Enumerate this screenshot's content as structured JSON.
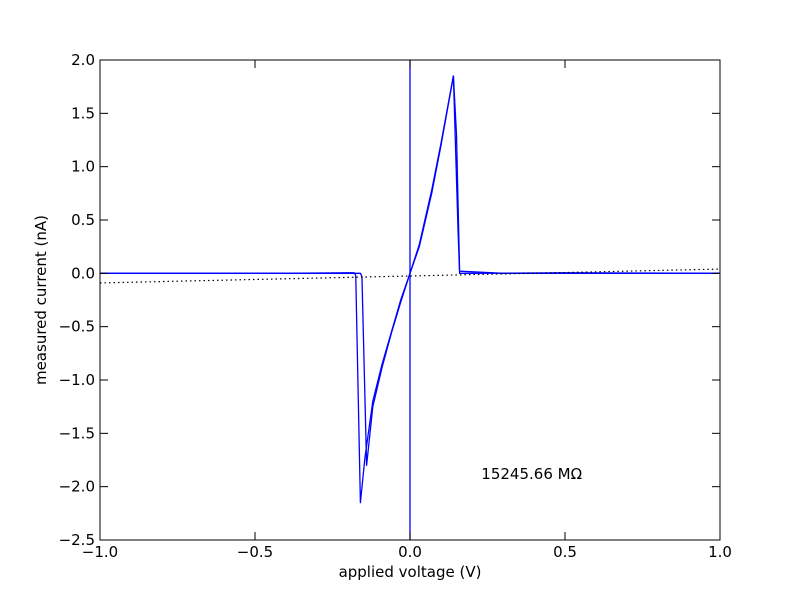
{
  "chart_data": {
    "type": "line",
    "xlabel": "applied voltage (V)",
    "ylabel": "measured current (nA)",
    "xlim": [
      -1.0,
      1.0
    ],
    "ylim": [
      -2.5,
      2.0
    ],
    "x_ticks": [
      -1.0,
      -0.5,
      0.0,
      0.5,
      1.0
    ],
    "x_tick_labels": [
      "−1.0",
      "−0.5",
      "0.0",
      "0.5",
      "1.0"
    ],
    "y_ticks": [
      2.0,
      1.5,
      1.0,
      0.5,
      0.0,
      -0.5,
      -1.0,
      -1.5,
      -2.0,
      -2.5
    ],
    "y_tick_labels": [
      "2.0",
      "1.5",
      "1.0",
      "0.5",
      "0.0",
      "−0.5",
      "−1.0",
      "−1.5",
      "−2.0",
      "−2.5"
    ],
    "grid": false,
    "annotation": {
      "text": "15245.66 MΩ",
      "x": 0.23,
      "y": -1.93
    },
    "series": [
      {
        "style": "solid",
        "color": "#0000ff",
        "x": [
          -1.0,
          -0.4,
          -0.2,
          -0.18,
          -0.175,
          -0.16,
          -0.145,
          -0.12,
          -0.09,
          -0.06,
          -0.03,
          0.0,
          0.03,
          0.07,
          0.1,
          0.14,
          0.155,
          0.16,
          0.2,
          0.5,
          1.0
        ],
        "y": [
          0.0,
          0.0,
          0.005,
          0.005,
          -0.02,
          -2.15,
          -1.72,
          -1.2,
          -0.85,
          -0.55,
          -0.25,
          0.0,
          0.25,
          0.75,
          1.2,
          1.85,
          0.4,
          0.0,
          0.0,
          0.005,
          0.0
        ]
      },
      {
        "style": "solid",
        "color": "#0000ff",
        "x": [
          -1.0,
          -0.5,
          -0.2,
          -0.16,
          -0.155,
          -0.14,
          -0.12,
          -0.09,
          -0.06,
          -0.03,
          0.0,
          0.03,
          0.07,
          0.1,
          0.14,
          0.15,
          0.16,
          0.3,
          1.0
        ],
        "y": [
          0.0,
          0.0,
          0.0,
          0.0,
          -0.03,
          -1.8,
          -1.25,
          -0.88,
          -0.56,
          -0.27,
          0.0,
          0.27,
          0.78,
          1.22,
          1.85,
          1.3,
          0.02,
          0.0,
          0.0
        ]
      },
      {
        "style": "dotted",
        "color": "#000000",
        "x": [
          -1.0,
          1.0
        ],
        "y": [
          -0.09,
          0.04
        ]
      },
      {
        "style": "vline",
        "color": "#0000ff",
        "x": [
          0.0,
          0.0
        ],
        "y": [
          -2.5,
          2.0
        ]
      }
    ]
  }
}
